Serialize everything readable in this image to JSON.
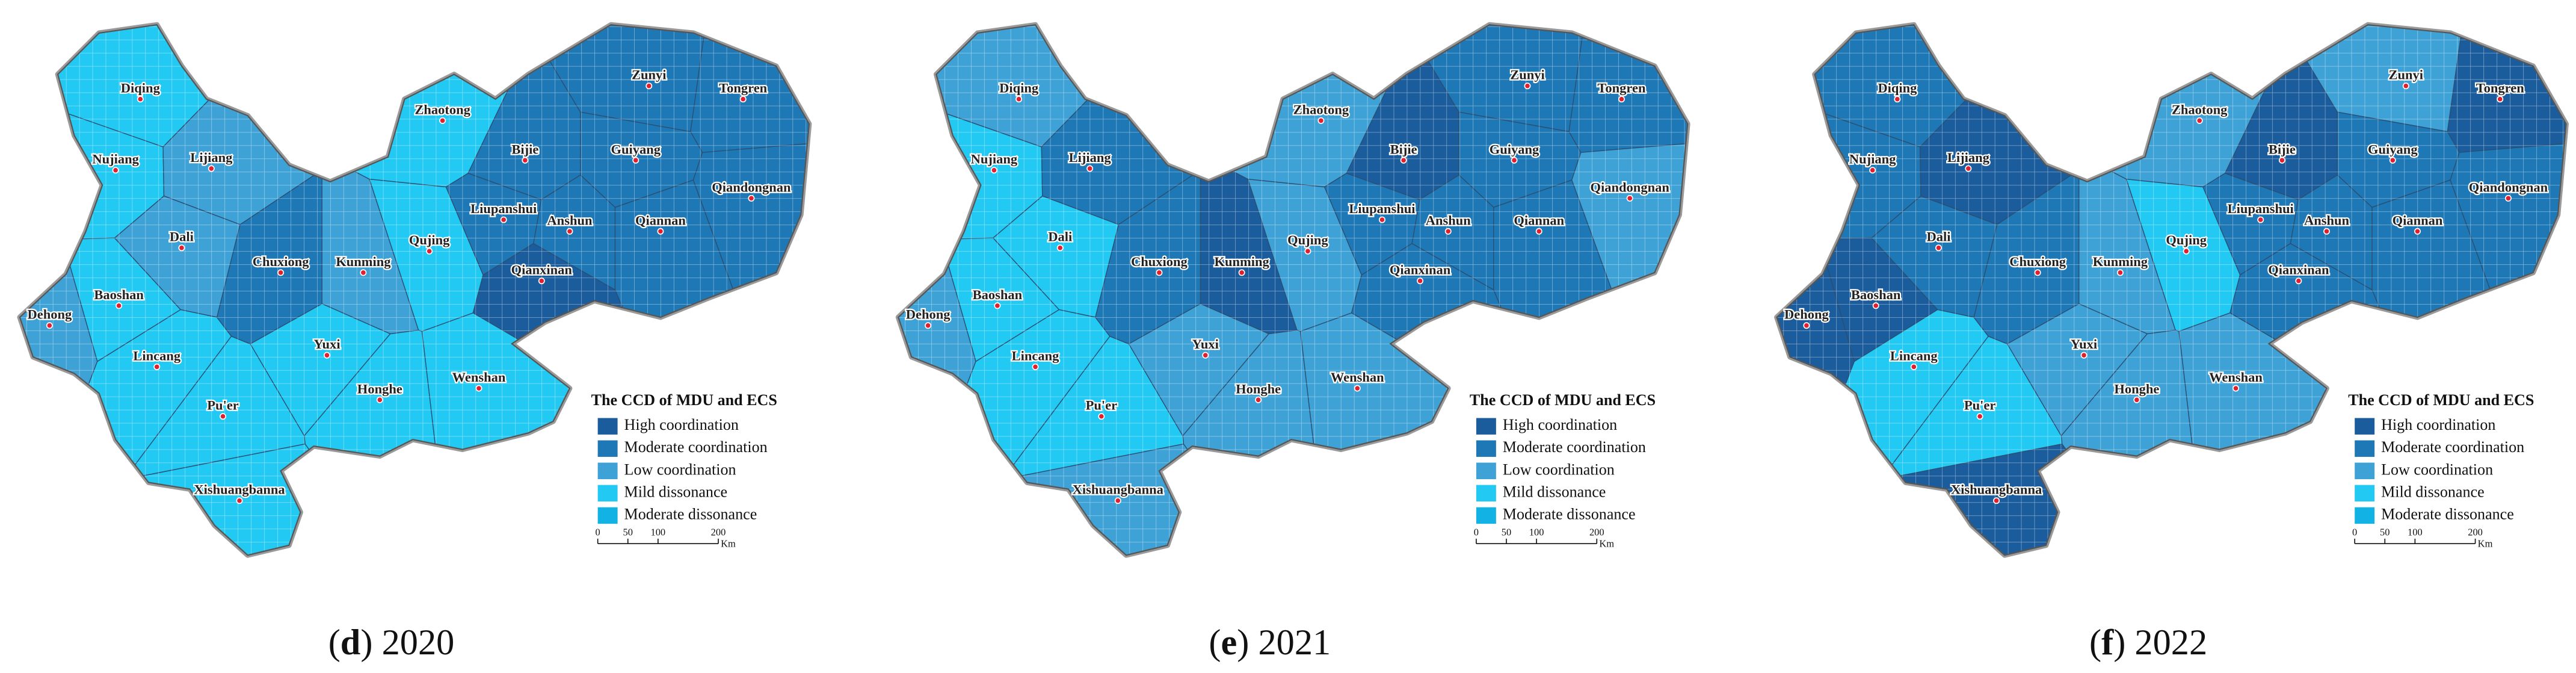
{
  "cities": [
    "Diqing",
    "Nujiang",
    "Lijiang",
    "Dali",
    "Baoshan",
    "Dehong",
    "Lincang",
    "Pu'er",
    "Xishuangbanna",
    "Chuxiong",
    "Kunming",
    "Yuxi",
    "Honghe",
    "Wenshan",
    "Qujing",
    "Zhaotong",
    "Bijie",
    "Zunyi",
    "Tongren",
    "Guiyang",
    "Qiandongnan",
    "Liupanshui",
    "Anshun",
    "Qiannan",
    "Qianxinan"
  ],
  "legend": {
    "title": "The CCD of MDU and ECS",
    "items": [
      {
        "label": "High coordination",
        "color": "#1b5c9c"
      },
      {
        "label": "Moderate coordination",
        "color": "#1e78b6"
      },
      {
        "label": "Low coordination",
        "color": "#3ea2d6"
      },
      {
        "label": "Mild dissonance",
        "color": "#22c9f3"
      },
      {
        "label": "Moderate dissonance",
        "color": "#12b3e4"
      }
    ]
  },
  "scale": {
    "ticks": [
      0,
      50,
      100,
      200
    ],
    "unit": "Km"
  },
  "panels": [
    {
      "caption": [
        "(",
        "d",
        ") 2020"
      ],
      "levels": [
        3,
        3,
        2,
        2,
        3,
        2,
        3,
        3,
        3,
        1,
        2,
        3,
        3,
        3,
        3,
        3,
        1,
        1,
        1,
        1,
        1,
        1,
        1,
        1,
        0
      ]
    },
    {
      "caption": [
        "(",
        "e",
        ") 2021"
      ],
      "levels": [
        2,
        3,
        1,
        3,
        3,
        2,
        3,
        3,
        2,
        1,
        0,
        2,
        2,
        2,
        2,
        2,
        0,
        1,
        1,
        1,
        2,
        1,
        1,
        1,
        1
      ]
    },
    {
      "caption": [
        "(",
        "f",
        ") 2022"
      ],
      "levels": [
        1,
        1,
        0,
        1,
        0,
        0,
        3,
        3,
        0,
        1,
        2,
        2,
        2,
        2,
        3,
        2,
        0,
        2,
        0,
        1,
        1,
        1,
        1,
        1,
        1
      ]
    }
  ]
}
